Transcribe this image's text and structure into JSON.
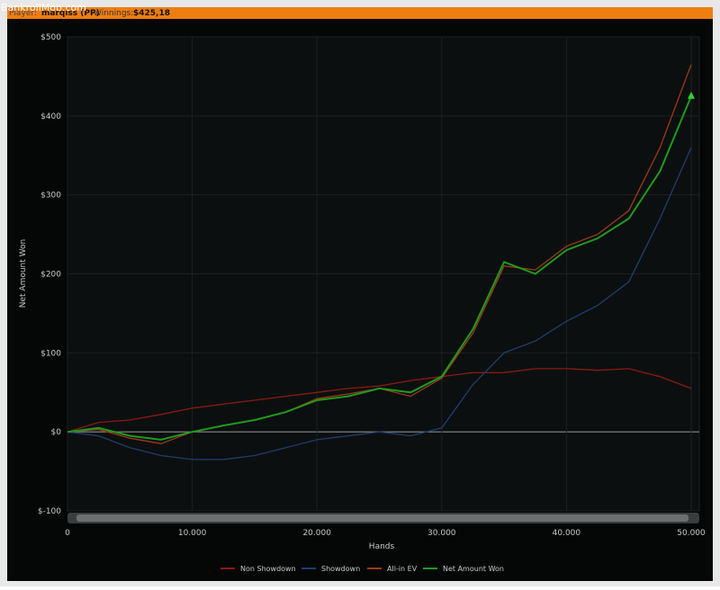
{
  "header": {
    "watermark": "BankrollMob.com",
    "player_label": "Player:",
    "player": "marqiss (PP)",
    "winnings_label": "Winnings:",
    "winnings": "$425,18"
  },
  "chart_data": {
    "type": "line",
    "y_label": "Net Amount Won",
    "x_label": "Hands",
    "x": [
      0,
      2500,
      5000,
      7500,
      10000,
      12500,
      15000,
      17500,
      20000,
      22500,
      25000,
      27500,
      30000,
      32500,
      35000,
      37500,
      40000,
      42500,
      45000,
      47500,
      50000
    ],
    "xlim": [
      0,
      50000
    ],
    "xticks": [
      0,
      {
        "value": 10000,
        "label": "10.000"
      },
      {
        "value": 20000,
        "label": "20.000"
      },
      {
        "value": 30000,
        "label": "30.000"
      },
      {
        "value": 40000,
        "label": "40.000"
      },
      {
        "value": 50000,
        "label": "50.000"
      }
    ],
    "ylim": [
      -100,
      500
    ],
    "yticks": [
      {
        "value": -100,
        "label": "$-100"
      },
      {
        "value": 0,
        "label": "$0"
      },
      {
        "value": 100,
        "label": "$100"
      },
      {
        "value": 200,
        "label": "$200"
      },
      {
        "value": 300,
        "label": "$300"
      },
      {
        "value": 400,
        "label": "$400"
      },
      {
        "value": 500,
        "label": "$500"
      }
    ],
    "grid": true,
    "series": [
      {
        "name": "Non Showdown",
        "color": "#8a1a14",
        "values": [
          0,
          12,
          15,
          22,
          30,
          35,
          40,
          45,
          50,
          55,
          58,
          65,
          70,
          75,
          75,
          80,
          80,
          78,
          80,
          70,
          55
        ]
      },
      {
        "name": "Showdown",
        "color": "#1d3f6e",
        "values": [
          0,
          -5,
          -20,
          -30,
          -35,
          -35,
          -30,
          -20,
          -10,
          -5,
          0,
          -5,
          5,
          60,
          100,
          115,
          140,
          160,
          190,
          270,
          360
        ]
      },
      {
        "name": "All-in EV",
        "color": "#9b3a1a",
        "values": [
          0,
          3,
          -8,
          -15,
          0,
          8,
          15,
          25,
          42,
          48,
          55,
          45,
          68,
          125,
          210,
          205,
          235,
          250,
          280,
          360,
          465
        ]
      },
      {
        "name": "Net Amount Won",
        "color": "#1f9a1f",
        "values": [
          0,
          5,
          -5,
          -10,
          0,
          8,
          15,
          25,
          40,
          45,
          55,
          50,
          70,
          130,
          215,
          200,
          230,
          245,
          270,
          330,
          425
        ]
      }
    ]
  }
}
